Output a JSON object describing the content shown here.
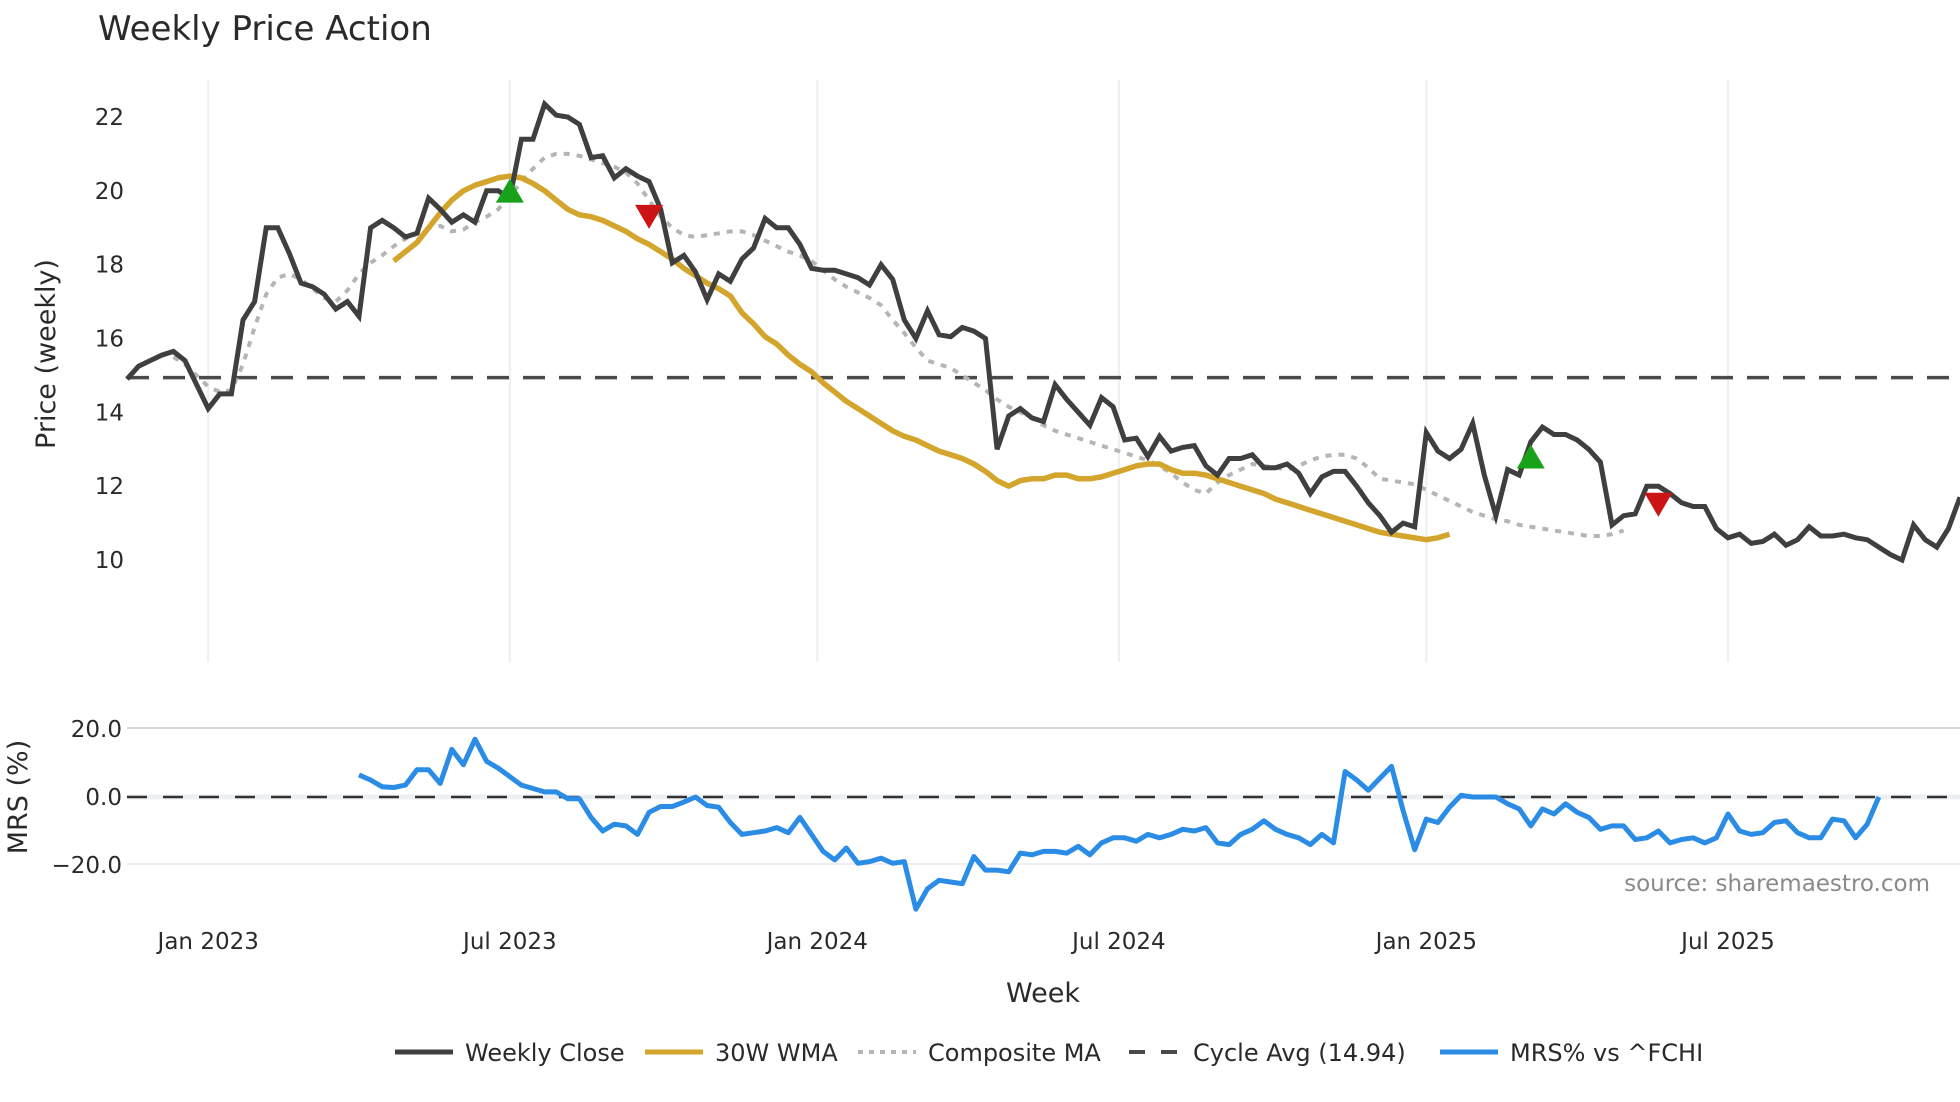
{
  "title": "Weekly Price Action",
  "source_label": "source: sharemaestro.com",
  "x_axis": {
    "title": "Week",
    "ticks": [
      "Jan 2023",
      "Jul 2023",
      "Jan 2024",
      "Jul 2024",
      "Jan 2025",
      "Jul 2025"
    ]
  },
  "price_axis": {
    "title": "Price (weekly)",
    "ticks": [
      "10",
      "12",
      "14",
      "16",
      "18",
      "20",
      "22"
    ]
  },
  "mrs_axis": {
    "title": "MRS (%)",
    "ticks": [
      "20.0",
      "0.0",
      "−20.0"
    ]
  },
  "legend": [
    {
      "label": "Weekly Close",
      "color": "#3f3f3f",
      "style": "solid"
    },
    {
      "label": "30W WMA",
      "color": "#d4a52c",
      "style": "solid"
    },
    {
      "label": "Composite MA",
      "color": "#b5b5b5",
      "style": "dotted"
    },
    {
      "label": "Cycle Avg (14.94)",
      "color": "#4a4a4a",
      "style": "dashed"
    },
    {
      "label": "MRS% vs ^FCHI",
      "color": "#2b8ce6",
      "style": "solid"
    }
  ],
  "colors": {
    "close": "#3f3f3f",
    "wma": "#d4a52c",
    "composite": "#b5b5b5",
    "cycle": "#4a4a4a",
    "mrs": "#2b8ce6",
    "buy": "#17a21a",
    "sell": "#cc1414",
    "grid": "#eceff3"
  },
  "chart_data": [
    {
      "type": "line",
      "title": "Weekly Price Action",
      "xlabel": "Week",
      "ylabel": "Price (weekly)",
      "ylim": [
        9.3,
        23.0
      ],
      "x_start_week_index": 0,
      "x_ticks": {
        "Jan 2023": 7,
        "Jul 2023": 33,
        "Jan 2024": 59.5,
        "Jul 2024": 85.5,
        "Jan 2025": 112,
        "Jul 2025": 138
      },
      "grid": true,
      "legend_position": "bottom",
      "cycle_avg": 14.94,
      "series": [
        {
          "name": "Weekly Close",
          "values": [
            14.9,
            15.25,
            15.4,
            15.55,
            15.65,
            15.4,
            14.75,
            14.1,
            14.5,
            14.5,
            16.5,
            17.0,
            19.0,
            19.0,
            18.3,
            17.5,
            17.4,
            17.2,
            16.8,
            17.0,
            16.6,
            19.0,
            19.2,
            19.0,
            18.75,
            18.85,
            19.8,
            19.5,
            19.15,
            19.35,
            19.15,
            20.0,
            20.0,
            19.8,
            21.4,
            21.4,
            22.35,
            22.05,
            22.0,
            21.8,
            20.9,
            20.95,
            20.35,
            20.6,
            20.4,
            20.25,
            19.5,
            18.05,
            18.25,
            17.8,
            17.05,
            17.75,
            17.55,
            18.15,
            18.45,
            19.25,
            19.0,
            19.0,
            18.55,
            17.9,
            17.85,
            17.85,
            17.75,
            17.65,
            17.45,
            18.0,
            17.6,
            16.5,
            16.0,
            16.75,
            16.1,
            16.05,
            16.3,
            16.2,
            16.0,
            13.0,
            13.9,
            14.1,
            13.85,
            13.75,
            14.75,
            14.35,
            14.0,
            13.65,
            14.4,
            14.15,
            13.25,
            13.3,
            12.8,
            13.35,
            12.95,
            13.05,
            13.1,
            12.55,
            12.3,
            12.75,
            12.75,
            12.85,
            12.5,
            12.5,
            12.6,
            12.35,
            11.8,
            12.25,
            12.4,
            12.4,
            12.0,
            11.55,
            11.2,
            10.75,
            11.0,
            10.9,
            13.45,
            12.95,
            12.75,
            13.0,
            13.7,
            12.3,
            11.2,
            12.45,
            12.3,
            13.2,
            13.6,
            13.4,
            13.4,
            13.25,
            13.0,
            12.65,
            10.95,
            11.2,
            11.25,
            12.0,
            12.0,
            11.8,
            11.55,
            11.45,
            11.45,
            10.85,
            10.6,
            10.7,
            10.45,
            10.5,
            10.7,
            10.4,
            10.55,
            10.9,
            10.65,
            10.65,
            10.7,
            10.6,
            10.55,
            10.35,
            10.15,
            10.0,
            10.95,
            10.55,
            10.35,
            10.85,
            11.7
          ]
        },
        {
          "name": "30W WMA",
          "start_index": 23,
          "values": [
            18.1,
            18.35,
            18.6,
            19.0,
            19.4,
            19.75,
            20.0,
            20.15,
            20.25,
            20.35,
            20.4,
            20.35,
            20.2,
            20.0,
            19.75,
            19.5,
            19.35,
            19.3,
            19.2,
            19.05,
            18.9,
            18.7,
            18.55,
            18.35,
            18.15,
            17.9,
            17.7,
            17.5,
            17.35,
            17.15,
            16.7,
            16.4,
            16.05,
            15.85,
            15.55,
            15.3,
            15.1,
            14.8,
            14.55,
            14.3,
            14.1,
            13.9,
            13.7,
            13.5,
            13.35,
            13.25,
            13.1,
            12.95,
            12.85,
            12.75,
            12.6,
            12.4,
            12.15,
            12.0,
            12.15,
            12.2,
            12.2,
            12.3,
            12.3,
            12.2,
            12.2,
            12.25,
            12.35,
            12.45,
            12.55,
            12.6,
            12.6,
            12.45,
            12.35,
            12.35,
            12.3,
            12.2,
            12.1,
            12.0,
            11.9,
            11.8,
            11.65,
            11.55,
            11.45,
            11.35,
            11.25,
            11.15,
            11.05,
            10.95,
            10.85,
            10.75,
            10.7,
            10.65,
            10.6,
            10.55,
            10.6,
            10.7
          ]
        },
        {
          "name": "Composite MA",
          "start_index": 4,
          "values": [
            15.5,
            15.3,
            15.0,
            14.7,
            14.55,
            14.6,
            15.3,
            16.3,
            17.2,
            17.65,
            17.75,
            17.6,
            17.35,
            17.1,
            17.0,
            17.3,
            17.75,
            18.05,
            18.25,
            18.5,
            18.7,
            18.85,
            19.0,
            19.05,
            18.9,
            18.95,
            19.15,
            19.3,
            19.5,
            19.85,
            20.25,
            20.6,
            20.9,
            21.0,
            21.0,
            20.95,
            20.85,
            20.75,
            20.65,
            20.5,
            20.2,
            19.75,
            19.3,
            19.0,
            18.8,
            18.75,
            18.8,
            18.85,
            18.9,
            18.9,
            18.8,
            18.65,
            18.5,
            18.35,
            18.25,
            18.1,
            17.85,
            17.6,
            17.4,
            17.25,
            17.1,
            16.9,
            16.5,
            16.15,
            15.75,
            15.4,
            15.3,
            15.2,
            15.0,
            14.8,
            14.6,
            14.35,
            14.15,
            14.0,
            13.85,
            13.65,
            13.5,
            13.4,
            13.3,
            13.2,
            13.1,
            13.0,
            12.9,
            12.8,
            12.7,
            12.55,
            12.35,
            12.1,
            11.9,
            11.8,
            12.1,
            12.3,
            12.45,
            12.6,
            12.55,
            12.5,
            12.45,
            12.55,
            12.7,
            12.8,
            12.85,
            12.85,
            12.75,
            12.5,
            12.2,
            12.15,
            12.1,
            12.05,
            11.9,
            11.75,
            11.6,
            11.45,
            11.3,
            11.2,
            11.1,
            11.05,
            10.95,
            10.9,
            10.85,
            10.8,
            10.75,
            10.7,
            10.65,
            10.65,
            10.7,
            10.8
          ]
        },
        {
          "name": "MRS% vs ^FCHI",
          "start_index": 20,
          "ylim": [
            -36,
            26
          ],
          "values": [
            6.5,
            5.0,
            3.0,
            2.8,
            3.5,
            8.0,
            8.0,
            4.0,
            14.0,
            9.5,
            17.0,
            10.5,
            8.5,
            6.0,
            3.5,
            2.5,
            1.5,
            1.5,
            -0.5,
            -0.5,
            -6.0,
            -10.0,
            -8.0,
            -8.5,
            -11.0,
            -4.5,
            -2.8,
            -2.8,
            -1.5,
            0.0,
            -2.5,
            -3.0,
            -7.5,
            -11.0,
            -10.5,
            -10.0,
            -9.0,
            -10.5,
            -6.0,
            -11.0,
            -16.0,
            -18.5,
            -15.0,
            -19.5,
            -19.0,
            -18.0,
            -19.5,
            -19.0,
            -33.0,
            -27.0,
            -24.5,
            -25.0,
            -25.5,
            -17.5,
            -21.5,
            -21.5,
            -22.0,
            -16.5,
            -17.0,
            -16.0,
            -16.0,
            -16.5,
            -14.5,
            -17.0,
            -13.5,
            -12.0,
            -12.0,
            -13.0,
            -11.0,
            -12.0,
            -11.0,
            -9.5,
            -10.0,
            -9.0,
            -13.5,
            -14.0,
            -11.0,
            -9.5,
            -7.0,
            -9.5,
            -11.0,
            -12.0,
            -14.0,
            -11.0,
            -13.5,
            7.5,
            5.0,
            2.0,
            5.5,
            9.0,
            -4.0,
            -15.5,
            -6.5,
            -7.5,
            -3.0,
            0.5,
            0.0,
            0.0,
            0.0,
            -2.0,
            -3.5,
            -8.5,
            -3.5,
            -5.0,
            -2.0,
            -4.5,
            -6.0,
            -9.5,
            -8.5,
            -8.5,
            -12.5,
            -12.0,
            -10.0,
            -13.5,
            -12.5,
            -12.0,
            -13.5,
            -12.0,
            -5.0,
            -10.0,
            -11.0,
            -10.5,
            -7.5,
            -7.0,
            -10.5,
            -12.0,
            -12.0,
            -6.5,
            -7.0,
            -12.0,
            -8.0,
            0.0
          ]
        }
      ],
      "markers": [
        {
          "type": "buy",
          "index": 33,
          "value": 19.95
        },
        {
          "type": "sell",
          "index": 45,
          "value": 19.35
        },
        {
          "type": "buy",
          "index": 121,
          "value": 12.75
        },
        {
          "type": "sell",
          "index": 132,
          "value": 11.55
        }
      ]
    }
  ]
}
